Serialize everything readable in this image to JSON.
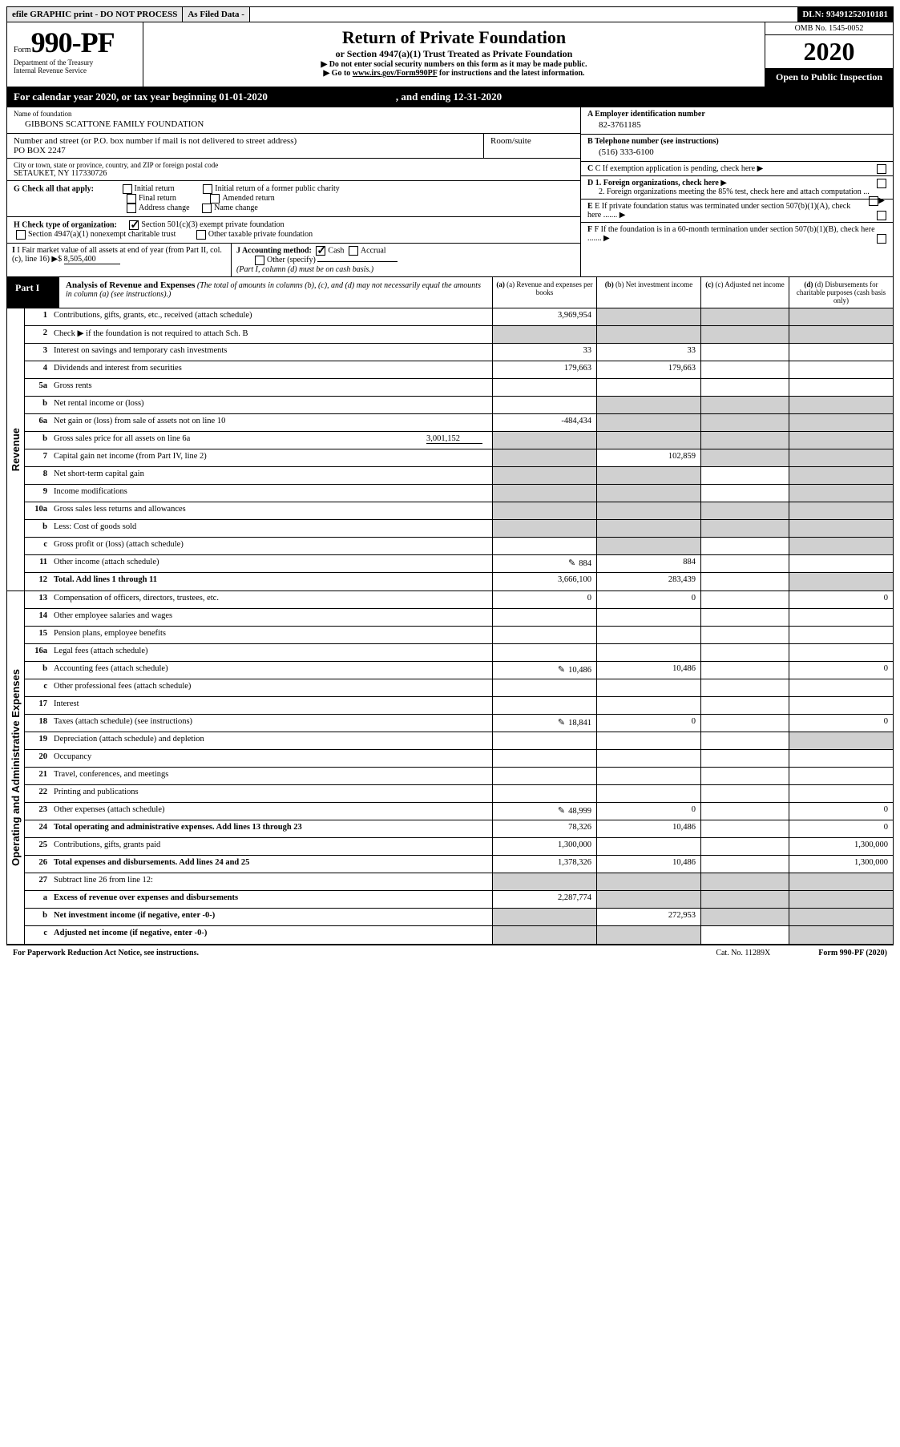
{
  "topbar": {
    "efile": "efile GRAPHIC print - DO NOT PROCESS",
    "asfiled": "As Filed Data -",
    "dln": "DLN: 93491252010181"
  },
  "header": {
    "form_word": "Form",
    "form_num": "990-PF",
    "dept1": "Department of the Treasury",
    "dept2": "Internal Revenue Service",
    "title": "Return of Private Foundation",
    "subtitle": "or Section 4947(a)(1) Trust Treated as Private Foundation",
    "note1": "▶ Do not enter social security numbers on this form as it may be made public.",
    "note2_pre": "▶ Go to ",
    "note2_link": "www.irs.gov/Form990PF",
    "note2_post": " for instructions and the latest information.",
    "omb": "OMB No. 1545-0052",
    "year": "2020",
    "open": "Open to Public Inspection"
  },
  "cal": {
    "pre": "For calendar year 2020, or tax year beginning 01-01-2020",
    "post": ", and ending 12-31-2020"
  },
  "info": {
    "name_lbl": "Name of foundation",
    "name": "GIBBONS SCATTONE FAMILY FOUNDATION",
    "addr_lbl": "Number and street (or P.O. box number if mail is not delivered to street address)",
    "addr": "PO BOX 2247",
    "room_lbl": "Room/suite",
    "city_lbl": "City or town, state or province, country, and ZIP or foreign postal code",
    "city": "SETAUKET, NY 117330726",
    "ein_lbl": "A Employer identification number",
    "ein": "82-3761185",
    "tel_lbl": "B Telephone number (see instructions)",
    "tel": "(516) 333-6100",
    "c_lbl": "C If exemption application is pending, check here",
    "d1": "D 1. Foreign organizations, check here",
    "d2": "2. Foreign organizations meeting the 85% test, check here and attach computation ...",
    "e": "E If private foundation status was terminated under section 507(b)(1)(A), check here .......",
    "f": "F If the foundation is in a 60-month termination under section 507(b)(1)(B), check here ......."
  },
  "g": {
    "label": "G Check all that apply:",
    "opts": [
      "Initial return",
      "Initial return of a former public charity",
      "Final return",
      "Amended return",
      "Address change",
      "Name change"
    ]
  },
  "h": {
    "label": "H Check type of organization:",
    "opt1": "Section 501(c)(3) exempt private foundation",
    "opt2": "Section 4947(a)(1) nonexempt charitable trust",
    "opt3": "Other taxable private foundation"
  },
  "i": {
    "label": "I Fair market value of all assets at end of year (from Part II, col. (c), line 16) ▶$",
    "val": "8,505,400"
  },
  "j": {
    "label": "J Accounting method:",
    "cash": "Cash",
    "accrual": "Accrual",
    "other": "Other (specify)",
    "note": "(Part I, column (d) must be on cash basis.)"
  },
  "part1": {
    "tag": "Part I",
    "title": "Analysis of Revenue and Expenses",
    "note": " (The total of amounts in columns (b), (c), and (d) may not necessarily equal the amounts in column (a) (see instructions).)",
    "col_a": "(a) Revenue and expenses per books",
    "col_b": "(b) Net investment income",
    "col_c": "(c) Adjusted net income",
    "col_d": "(d) Disbursements for charitable purposes (cash basis only)"
  },
  "side": {
    "rev": "Revenue",
    "exp": "Operating and Administrative Expenses"
  },
  "rows": {
    "r1": {
      "ln": "1",
      "desc": "Contributions, gifts, grants, etc., received (attach schedule)",
      "a": "3,969,954"
    },
    "r2": {
      "ln": "2",
      "desc": "Check ▶      if the foundation is not required to attach Sch. B"
    },
    "r3": {
      "ln": "3",
      "desc": "Interest on savings and temporary cash investments",
      "a": "33",
      "b": "33"
    },
    "r4": {
      "ln": "4",
      "desc": "Dividends and interest from securities",
      "a": "179,663",
      "b": "179,663"
    },
    "r5a": {
      "ln": "5a",
      "desc": "Gross rents"
    },
    "r5b": {
      "ln": "b",
      "desc": "Net rental income or (loss)"
    },
    "r6a": {
      "ln": "6a",
      "desc": "Net gain or (loss) from sale of assets not on line 10",
      "a": "-484,434"
    },
    "r6b": {
      "ln": "b",
      "desc": "Gross sales price for all assets on line 6a",
      "inline": "3,001,152"
    },
    "r7": {
      "ln": "7",
      "desc": "Capital gain net income (from Part IV, line 2)",
      "b": "102,859"
    },
    "r8": {
      "ln": "8",
      "desc": "Net short-term capital gain"
    },
    "r9": {
      "ln": "9",
      "desc": "Income modifications"
    },
    "r10a": {
      "ln": "10a",
      "desc": "Gross sales less returns and allowances"
    },
    "r10b": {
      "ln": "b",
      "desc": "Less: Cost of goods sold"
    },
    "r10c": {
      "ln": "c",
      "desc": "Gross profit or (loss) (attach schedule)"
    },
    "r11": {
      "ln": "11",
      "desc": "Other income (attach schedule)",
      "a": "884",
      "b": "884",
      "icon": true
    },
    "r12": {
      "ln": "12",
      "desc": "Total. Add lines 1 through 11",
      "a": "3,666,100",
      "b": "283,439",
      "bold": true
    },
    "r13": {
      "ln": "13",
      "desc": "Compensation of officers, directors, trustees, etc.",
      "a": "0",
      "b": "0",
      "d": "0"
    },
    "r14": {
      "ln": "14",
      "desc": "Other employee salaries and wages"
    },
    "r15": {
      "ln": "15",
      "desc": "Pension plans, employee benefits"
    },
    "r16a": {
      "ln": "16a",
      "desc": "Legal fees (attach schedule)"
    },
    "r16b": {
      "ln": "b",
      "desc": "Accounting fees (attach schedule)",
      "a": "10,486",
      "b": "10,486",
      "d": "0",
      "icon": true
    },
    "r16c": {
      "ln": "c",
      "desc": "Other professional fees (attach schedule)"
    },
    "r17": {
      "ln": "17",
      "desc": "Interest"
    },
    "r18": {
      "ln": "18",
      "desc": "Taxes (attach schedule) (see instructions)",
      "a": "18,841",
      "b": "0",
      "d": "0",
      "icon": true
    },
    "r19": {
      "ln": "19",
      "desc": "Depreciation (attach schedule) and depletion"
    },
    "r20": {
      "ln": "20",
      "desc": "Occupancy"
    },
    "r21": {
      "ln": "21",
      "desc": "Travel, conferences, and meetings"
    },
    "r22": {
      "ln": "22",
      "desc": "Printing and publications"
    },
    "r23": {
      "ln": "23",
      "desc": "Other expenses (attach schedule)",
      "a": "48,999",
      "b": "0",
      "d": "0",
      "icon": true
    },
    "r24": {
      "ln": "24",
      "desc": "Total operating and administrative expenses. Add lines 13 through 23",
      "a": "78,326",
      "b": "10,486",
      "d": "0",
      "bold": true
    },
    "r25": {
      "ln": "25",
      "desc": "Contributions, gifts, grants paid",
      "a": "1,300,000",
      "d": "1,300,000"
    },
    "r26": {
      "ln": "26",
      "desc": "Total expenses and disbursements. Add lines 24 and 25",
      "a": "1,378,326",
      "b": "10,486",
      "d": "1,300,000",
      "bold": true
    },
    "r27": {
      "ln": "27",
      "desc": "Subtract line 26 from line 12:"
    },
    "r27a": {
      "ln": "a",
      "desc": "Excess of revenue over expenses and disbursements",
      "a": "2,287,774",
      "bold": true
    },
    "r27b": {
      "ln": "b",
      "desc": "Net investment income (if negative, enter -0-)",
      "b": "272,953",
      "bold": true
    },
    "r27c": {
      "ln": "c",
      "desc": "Adjusted net income (if negative, enter -0-)",
      "bold": true
    }
  },
  "footer": {
    "left": "For Paperwork Reduction Act Notice, see instructions.",
    "cat": "Cat. No. 11289X",
    "right": "Form 990-PF (2020)"
  }
}
